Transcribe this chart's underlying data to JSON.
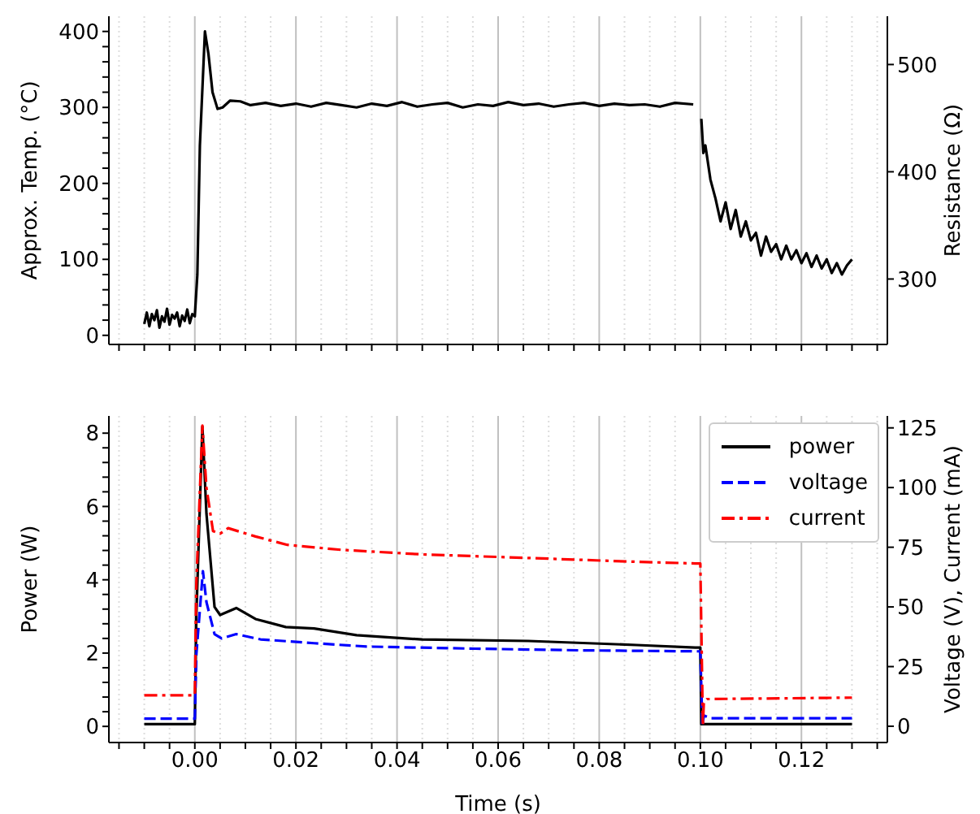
{
  "chart_data": [
    {
      "type": "line",
      "ylabel": "Approx. Temp. (°C)",
      "y2label": "Resistance (Ω)",
      "xlim": [
        -0.017,
        0.137
      ],
      "ylim": [
        -12,
        420
      ],
      "y2lim": [
        239,
        545
      ],
      "xticks": [
        {
          "value": -0.015,
          "label": null
        },
        {
          "value": -0.01,
          "label": null
        },
        {
          "value": -0.005,
          "label": null
        },
        0,
        {
          "value": 0.005,
          "label": null
        },
        {
          "value": 0.01,
          "label": null
        },
        {
          "value": 0.015,
          "label": null
        },
        0.02,
        {
          "value": 0.025,
          "label": null
        },
        {
          "value": 0.03,
          "label": null
        },
        {
          "value": 0.035,
          "label": null
        },
        0.04,
        {
          "value": 0.045,
          "label": null
        },
        {
          "value": 0.05,
          "label": null
        },
        {
          "value": 0.055,
          "label": null
        },
        0.06,
        {
          "value": 0.065,
          "label": null
        },
        {
          "value": 0.07,
          "label": null
        },
        {
          "value": 0.075,
          "label": null
        },
        0.08,
        {
          "value": 0.085,
          "label": null
        },
        {
          "value": 0.09,
          "label": null
        },
        {
          "value": 0.095,
          "label": null
        },
        0.1,
        {
          "value": 0.105,
          "label": null
        },
        {
          "value": 0.11,
          "label": null
        },
        {
          "value": 0.115,
          "label": null
        },
        0.12,
        {
          "value": 0.125,
          "label": null
        },
        {
          "value": 0.13,
          "label": null
        },
        {
          "value": 0.135,
          "label": null
        }
      ],
      "yticks": [
        0,
        {
          "value": 20,
          "label": null
        },
        {
          "value": 40,
          "label": null
        },
        {
          "value": 60,
          "label": null
        },
        {
          "value": 80,
          "label": null
        },
        100,
        {
          "value": 120,
          "label": null
        },
        {
          "value": 140,
          "label": null
        },
        {
          "value": 160,
          "label": null
        },
        {
          "value": 180,
          "label": null
        },
        200,
        {
          "value": 220,
          "label": null
        },
        {
          "value": 240,
          "label": null
        },
        {
          "value": 260,
          "label": null
        },
        {
          "value": 280,
          "label": null
        },
        300,
        {
          "value": 320,
          "label": null
        },
        {
          "value": 340,
          "label": null
        },
        {
          "value": 360,
          "label": null
        },
        {
          "value": 380,
          "label": null
        },
        400
      ],
      "y2ticks": [
        300,
        400,
        500
      ],
      "grid": true,
      "tick_labels": "y",
      "marker": "none",
      "series": [
        {
          "color": "#000000",
          "line_style": "solid",
          "x": [
            -0.01,
            -0.0095,
            -0.009,
            -0.0085,
            -0.008,
            -0.0075,
            -0.007,
            -0.0065,
            -0.006,
            -0.0055,
            -0.005,
            -0.0045,
            -0.004,
            -0.0035,
            -0.003,
            -0.0025,
            -0.002,
            -0.0015,
            -0.001,
            -0.0005,
            0,
            0.0005,
            0.001,
            0.002,
            0.0027,
            0.0035,
            0.0045,
            0.0055,
            0.007,
            0.009,
            0.011,
            0.014,
            0.017,
            0.02,
            0.023,
            0.026,
            0.029,
            0.032,
            0.035,
            0.038,
            0.041,
            0.044,
            0.047,
            0.05,
            0.053,
            0.056,
            0.059,
            0.062,
            0.065,
            0.068,
            0.071,
            0.074,
            0.077,
            0.08,
            0.083,
            0.086,
            0.089,
            0.092,
            0.095,
            0.0986,
            0.0994,
            0.1002,
            0.1006,
            0.101,
            0.102,
            0.103,
            0.104,
            0.105,
            0.106,
            0.107,
            0.108,
            0.109,
            0.11,
            0.111,
            0.112,
            0.113,
            0.114,
            0.115,
            0.116,
            0.117,
            0.118,
            0.119,
            0.12,
            0.121,
            0.122,
            0.123,
            0.124,
            0.125,
            0.126,
            0.127,
            0.128,
            0.129,
            0.13
          ],
          "values": [
            15,
            30,
            12,
            28,
            20,
            33,
            10,
            25,
            18,
            35,
            14,
            27,
            22,
            30,
            12,
            26,
            19,
            34,
            16,
            28,
            25,
            80,
            250,
            400,
            370,
            320,
            298,
            300,
            309,
            308,
            303,
            306,
            302,
            305,
            301,
            306,
            303,
            300,
            305,
            302,
            307,
            301,
            304,
            306,
            300,
            304,
            302,
            307,
            303,
            305,
            301,
            304,
            306,
            302,
            305,
            303,
            304,
            301,
            306,
            304,
            null,
            285,
            240,
            250,
            205,
            180,
            150,
            175,
            140,
            165,
            130,
            150,
            125,
            135,
            105,
            130,
            110,
            120,
            100,
            118,
            100,
            112,
            95,
            108,
            90,
            105,
            88,
            100,
            82,
            95,
            80,
            92,
            100
          ]
        }
      ]
    },
    {
      "type": "line",
      "xlabel": "Time (s)",
      "ylabel": "Power (W)",
      "y2label": "Voltage (V), Current (mA)",
      "xlim": [
        -0.017,
        0.137
      ],
      "ylim": [
        -0.44,
        8.47
      ],
      "y2lim": [
        -6.8,
        130
      ],
      "xticks": [
        {
          "value": -0.015,
          "label": null
        },
        {
          "value": -0.01,
          "label": null
        },
        {
          "value": -0.005,
          "label": null
        },
        {
          "value": 0,
          "label": "0.00"
        },
        {
          "value": 0.005,
          "label": null
        },
        {
          "value": 0.01,
          "label": null
        },
        {
          "value": 0.015,
          "label": null
        },
        {
          "value": 0.02,
          "label": "0.02"
        },
        {
          "value": 0.025,
          "label": null
        },
        {
          "value": 0.03,
          "label": null
        },
        {
          "value": 0.035,
          "label": null
        },
        {
          "value": 0.04,
          "label": "0.04"
        },
        {
          "value": 0.045,
          "label": null
        },
        {
          "value": 0.05,
          "label": null
        },
        {
          "value": 0.055,
          "label": null
        },
        {
          "value": 0.06,
          "label": "0.06"
        },
        {
          "value": 0.065,
          "label": null
        },
        {
          "value": 0.07,
          "label": null
        },
        {
          "value": 0.075,
          "label": null
        },
        {
          "value": 0.08,
          "label": "0.08"
        },
        {
          "value": 0.085,
          "label": null
        },
        {
          "value": 0.09,
          "label": null
        },
        {
          "value": 0.095,
          "label": null
        },
        {
          "value": 0.1,
          "label": "0.10"
        },
        {
          "value": 0.105,
          "label": null
        },
        {
          "value": 0.11,
          "label": null
        },
        {
          "value": 0.115,
          "label": null
        },
        {
          "value": 0.12,
          "label": "0.12"
        },
        {
          "value": 0.125,
          "label": null
        },
        {
          "value": 0.13,
          "label": null
        },
        {
          "value": 0.135,
          "label": null
        }
      ],
      "yticks": [
        0,
        {
          "value": 0.4,
          "label": null
        },
        {
          "value": 0.8,
          "label": null
        },
        {
          "value": 1.2,
          "label": null
        },
        {
          "value": 1.6,
          "label": null
        },
        2,
        {
          "value": 2.4,
          "label": null
        },
        {
          "value": 2.8,
          "label": null
        },
        {
          "value": 3.2,
          "label": null
        },
        {
          "value": 3.6,
          "label": null
        },
        4,
        {
          "value": 4.4,
          "label": null
        },
        {
          "value": 4.8,
          "label": null
        },
        {
          "value": 5.2,
          "label": null
        },
        {
          "value": 5.6,
          "label": null
        },
        6,
        {
          "value": 6.4,
          "label": null
        },
        {
          "value": 6.8,
          "label": null
        },
        {
          "value": 7.2,
          "label": null
        },
        {
          "value": 7.6,
          "label": null
        },
        8
      ],
      "y2ticks": [
        0,
        25,
        50,
        75,
        100,
        125
      ],
      "grid": true,
      "legend": "top right",
      "marker": "none",
      "series": [
        {
          "name": "power",
          "color": "#000000",
          "line_style": "solid",
          "x": [
            -0.01,
            0,
            0.0003,
            0.0015,
            0.0023,
            0.0039,
            0.005,
            0.0082,
            0.012,
            0.018,
            0.0236,
            0.032,
            0.045,
            0.066,
            0.0874,
            0.099,
            0.1,
            0.1002,
            0.13
          ],
          "values": [
            0.06,
            0.06,
            3,
            8.18,
            5.8,
            3.26,
            3.04,
            3.23,
            2.93,
            2.71,
            2.67,
            2.49,
            2.37,
            2.33,
            2.22,
            2.15,
            2.15,
            0.06,
            0.06
          ]
        },
        {
          "name": "voltage",
          "color": "#0000ff",
          "line_style": "dashed",
          "axis": "y2",
          "x": [
            -0.01,
            0,
            0.0003,
            0.0016,
            0.0023,
            0.0039,
            0.0053,
            0.0082,
            0.013,
            0.0236,
            0.034,
            0.0555,
            0.0768,
            0.099,
            0.1,
            0.1004,
            0.1007,
            0.102,
            0.13
          ],
          "values": [
            3.2,
            3.2,
            30,
            65,
            52,
            38.6,
            36.8,
            38.6,
            36.4,
            34.8,
            33.4,
            32.5,
            31.8,
            31.4,
            31.4,
            0,
            4.5,
            3.4,
            3.4
          ]
        },
        {
          "name": "current",
          "color": "#ff0000",
          "line_style": "dashdot",
          "axis": "y2",
          "x": [
            -0.01,
            0,
            0.0003,
            0.0015,
            0.0023,
            0.0036,
            0.005,
            0.0066,
            0.012,
            0.0183,
            0.029,
            0.045,
            0.066,
            0.0874,
            0.099,
            0.1,
            0.1005,
            0.1007,
            0.1013,
            0.13
          ],
          "values": [
            13,
            13,
            60,
            126,
            100,
            81.8,
            80.7,
            83,
            79.5,
            76,
            73.9,
            72,
            70.5,
            68.9,
            68.2,
            68.2,
            0,
            10.2,
            11.4,
            12
          ]
        }
      ]
    }
  ]
}
